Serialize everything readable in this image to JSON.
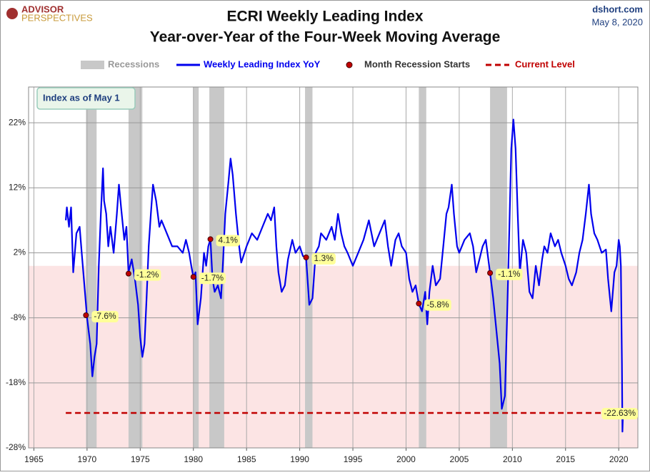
{
  "chart_data": {
    "type": "line",
    "title": "ECRI Weekly Leading Index",
    "subtitle": "Year-over-Year of the Four-Week Moving Average",
    "logo": [
      "ADVISOR",
      "PERSPECTIVES"
    ],
    "source": "dshort.com",
    "date": "May 8, 2020",
    "note": "Index as of May 1",
    "xlim": [
      1964.5,
      2021.8
    ],
    "ylim": [
      -28,
      27.5
    ],
    "xticks": [
      1965,
      1970,
      1975,
      1980,
      1985,
      1990,
      1995,
      2000,
      2005,
      2010,
      2015,
      2020
    ],
    "yticks": [
      {
        "value": -28,
        "label": "-28%"
      },
      {
        "value": -18,
        "label": "-18%"
      },
      {
        "value": -8,
        "label": "-8%"
      },
      {
        "value": 2,
        "label": "2%"
      },
      {
        "value": 12,
        "label": "12%"
      },
      {
        "value": 22,
        "label": "22%"
      }
    ],
    "grid": true,
    "series": [
      {
        "name": "Weekly Leading Index YoY",
        "color": "#0000ee",
        "x": [
          1968.0,
          1968.1,
          1968.3,
          1968.5,
          1968.7,
          1969.0,
          1969.3,
          1969.5,
          1969.8,
          1970.0,
          1970.3,
          1970.5,
          1970.7,
          1970.9,
          1971.1,
          1971.3,
          1971.5,
          1971.6,
          1971.8,
          1972.0,
          1972.2,
          1972.5,
          1972.8,
          1973.0,
          1973.2,
          1973.5,
          1973.7,
          1973.9,
          1974.2,
          1974.5,
          1974.8,
          1975.0,
          1975.2,
          1975.4,
          1975.6,
          1975.8,
          1976.0,
          1976.2,
          1976.5,
          1976.8,
          1977.0,
          1977.5,
          1978.0,
          1978.5,
          1979.0,
          1979.3,
          1979.6,
          1979.8,
          1980.0,
          1980.2,
          1980.4,
          1980.7,
          1981.0,
          1981.2,
          1981.4,
          1981.6,
          1981.8,
          1982.0,
          1982.3,
          1982.6,
          1982.8,
          1983.0,
          1983.3,
          1983.5,
          1983.7,
          1984.0,
          1984.3,
          1984.5,
          1984.8,
          1985.0,
          1985.5,
          1986.0,
          1986.5,
          1987.0,
          1987.3,
          1987.6,
          1987.8,
          1988.0,
          1988.3,
          1988.6,
          1988.9,
          1989.3,
          1989.6,
          1990.0,
          1990.3,
          1990.6,
          1990.9,
          1991.2,
          1991.5,
          1991.8,
          1992.0,
          1992.5,
          1993.0,
          1993.3,
          1993.6,
          1993.9,
          1994.2,
          1994.5,
          1995.0,
          1995.5,
          1996.0,
          1996.5,
          1997.0,
          1997.5,
          1998.0,
          1998.3,
          1998.6,
          1999.0,
          1999.3,
          1999.6,
          2000.0,
          2000.3,
          2000.6,
          2000.9,
          2001.2,
          2001.5,
          2001.8,
          2002.0,
          2002.2,
          2002.5,
          2002.8,
          2003.2,
          2003.5,
          2003.8,
          2004.0,
          2004.3,
          2004.5,
          2004.8,
          2005.0,
          2005.5,
          2006.0,
          2006.3,
          2006.6,
          2006.9,
          2007.2,
          2007.5,
          2007.9,
          2008.2,
          2008.5,
          2008.8,
          2009.0,
          2009.3,
          2009.5,
          2009.7,
          2009.9,
          2010.1,
          2010.3,
          2010.5,
          2010.7,
          2011.0,
          2011.3,
          2011.6,
          2011.9,
          2012.2,
          2012.5,
          2012.8,
          2013.0,
          2013.3,
          2013.6,
          2014.0,
          2014.3,
          2014.6,
          2015.0,
          2015.3,
          2015.6,
          2016.0,
          2016.3,
          2016.6,
          2016.9,
          2017.2,
          2017.4,
          2017.7,
          2018.0,
          2018.4,
          2018.8,
          2019.0,
          2019.3,
          2019.6,
          2019.8,
          2020.0,
          2020.1,
          2020.2,
          2020.3,
          2020.35,
          2020.4
        ],
        "values": [
          7,
          9,
          6,
          9,
          -1,
          5,
          6,
          2,
          -4,
          -8,
          -12,
          -17,
          -14,
          -12,
          0,
          8,
          15,
          10,
          8,
          3,
          6,
          2,
          8,
          12.5,
          9,
          4,
          6,
          -1,
          1,
          -2,
          -6,
          -11,
          -14,
          -12,
          -5,
          3,
          8,
          12.5,
          10,
          6,
          7,
          5,
          3,
          3,
          2,
          4,
          2,
          0,
          -1.7,
          -1,
          -9,
          -5,
          2,
          0,
          3,
          4.1,
          -2,
          -4,
          -3,
          -5,
          1,
          8,
          13,
          16.5,
          14,
          8,
          3,
          0.5,
          2,
          3,
          5,
          4,
          6,
          8,
          7,
          9,
          3,
          -1,
          -4,
          -3,
          1,
          4,
          2,
          3,
          1.5,
          1.3,
          -6,
          -5,
          2,
          3,
          5,
          4,
          6,
          4,
          8,
          5,
          3,
          2,
          0,
          2,
          4,
          7,
          3,
          5,
          7,
          3,
          0,
          4,
          5,
          3,
          2,
          -2,
          -4,
          -3,
          -5.8,
          -7,
          -4,
          -9,
          -4,
          0,
          -3,
          -2,
          3,
          8,
          9,
          12.5,
          8,
          3,
          2,
          4,
          5,
          3,
          -1,
          1,
          3,
          4,
          -1.1,
          -5,
          -10,
          -15,
          -22,
          -20,
          -8,
          5,
          18,
          22.5,
          18,
          8,
          -1,
          4,
          2,
          -4,
          -5,
          0,
          -3,
          1,
          3,
          2,
          5,
          3,
          4,
          2,
          0,
          -2,
          -3,
          -1,
          2,
          4,
          8,
          12.5,
          8,
          5,
          4,
          2,
          2.5,
          -2,
          -7,
          -1,
          0,
          4,
          3,
          0,
          -15,
          -25.5,
          -22.63
        ]
      }
    ],
    "recessions": {
      "name": "Recessions",
      "color": "#c8c8c8",
      "spans": [
        [
          1969.9,
          1970.9
        ],
        [
          1973.9,
          1975.2
        ],
        [
          1980.0,
          1980.5
        ],
        [
          1981.5,
          1982.9
        ],
        [
          1990.5,
          1991.2
        ],
        [
          2001.2,
          2001.9
        ],
        [
          2007.9,
          2009.5
        ]
      ]
    },
    "markers": {
      "name": "Month Recession Starts",
      "color": "#c00000",
      "x": [
        1969.9,
        1973.9,
        1980.0,
        1981.6,
        1990.6,
        2001.2,
        2007.9
      ],
      "values": [
        -7.6,
        -1.2,
        -1.7,
        4.1,
        1.3,
        -5.8,
        -1.1
      ],
      "value_labels": [
        "-7.6%",
        "-1.2%",
        "-1.7%",
        "4.1%",
        "1.3%",
        "-5.8%",
        "-1.1%"
      ]
    },
    "current_level": {
      "name": "Current Level",
      "color": "#c00000",
      "value": -22.63,
      "value_label": "-22.63%"
    }
  }
}
